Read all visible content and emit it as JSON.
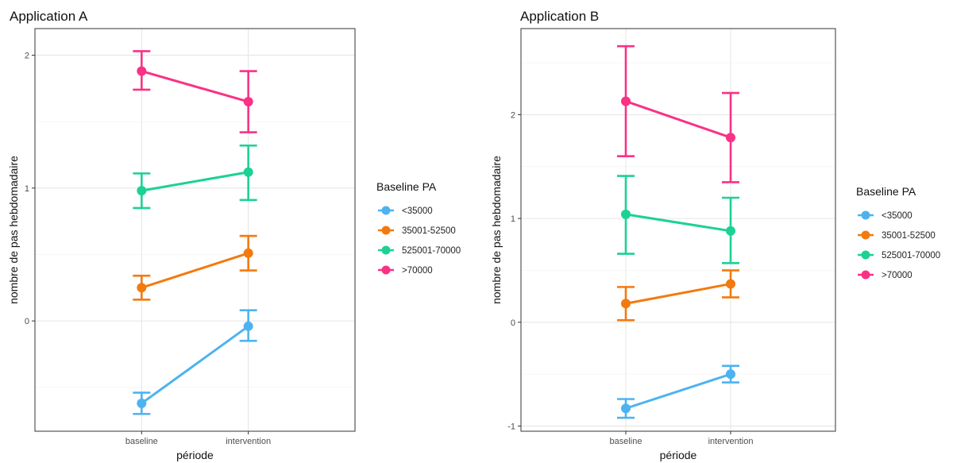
{
  "chart_data": [
    {
      "type": "line",
      "title": "Application A",
      "xlabel": "période",
      "ylabel": "nombre de pas hebdomadaire",
      "categories": [
        "baseline",
        "intervention"
      ],
      "y_ticks": [
        0,
        1,
        2
      ],
      "ylim": [
        -0.83,
        2.2
      ],
      "grid": true,
      "legend": {
        "title": "Baseline PA",
        "position": "right"
      },
      "series": [
        {
          "name": "<35000",
          "color": "#4db3f0",
          "values": [
            -0.62,
            -0.04
          ],
          "lower": [
            -0.7,
            -0.15
          ],
          "upper": [
            -0.54,
            0.08
          ]
        },
        {
          "name": "35001-52500",
          "color": "#f27a0f",
          "values": [
            0.25,
            0.51
          ],
          "lower": [
            0.16,
            0.38
          ],
          "upper": [
            0.34,
            0.64
          ]
        },
        {
          "name": "525001-70000",
          "color": "#1cd196",
          "values": [
            0.98,
            1.12
          ],
          "lower": [
            0.85,
            0.91
          ],
          "upper": [
            1.11,
            1.32
          ]
        },
        {
          "name": ">70000",
          "color": "#fa3185",
          "values": [
            1.88,
            1.65
          ],
          "lower": [
            1.74,
            1.42
          ],
          "upper": [
            2.03,
            1.88
          ]
        }
      ]
    },
    {
      "type": "line",
      "title": "Application B",
      "xlabel": "période",
      "ylabel": "nombre de pas hebdomadaire",
      "categories": [
        "baseline",
        "intervention"
      ],
      "y_ticks": [
        -1,
        0,
        1,
        2
      ],
      "ylim": [
        -1.05,
        2.83
      ],
      "grid": true,
      "legend": {
        "title": "Baseline PA",
        "position": "right"
      },
      "series": [
        {
          "name": "<35000",
          "color": "#4db3f0",
          "values": [
            -0.83,
            -0.5
          ],
          "lower": [
            -0.92,
            -0.58
          ],
          "upper": [
            -0.74,
            -0.42
          ]
        },
        {
          "name": "35001-52500",
          "color": "#f27a0f",
          "values": [
            0.18,
            0.37
          ],
          "lower": [
            0.02,
            0.24
          ],
          "upper": [
            0.34,
            0.5
          ]
        },
        {
          "name": "525001-70000",
          "color": "#1cd196",
          "values": [
            1.04,
            0.88
          ],
          "lower": [
            0.66,
            0.57
          ],
          "upper": [
            1.41,
            1.2
          ]
        },
        {
          "name": ">70000",
          "color": "#fa3185",
          "values": [
            2.13,
            1.78
          ],
          "lower": [
            1.6,
            1.35
          ],
          "upper": [
            2.66,
            2.21
          ]
        }
      ]
    }
  ]
}
